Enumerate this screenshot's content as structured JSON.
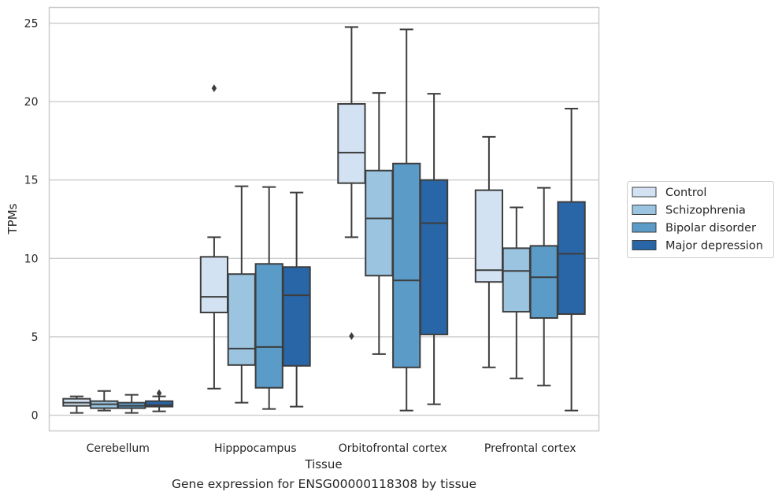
{
  "caption": "Gene expression for ENSG00000118308 by tissue",
  "chart_data": {
    "type": "boxplot",
    "xlabel": "Tissue",
    "ylabel": "TPMs",
    "ylim": [
      -1,
      26
    ],
    "yticks": [
      0,
      5,
      10,
      15,
      20,
      25
    ],
    "grid": "horizontal",
    "legend_position": "right",
    "categories": [
      "Cerebellum",
      "Hipppocampus",
      "Orbitofrontal cortex",
      "Prefrontal cortex"
    ],
    "series": [
      {
        "name": "Control",
        "color": "#d2e2f2",
        "boxes": [
          {
            "whislo": 0.15,
            "q1": 0.6,
            "med": 0.8,
            "q3": 1.05,
            "whishi": 1.2,
            "fliers": []
          },
          {
            "whislo": 1.7,
            "q1": 6.55,
            "med": 7.55,
            "q3": 10.1,
            "whishi": 11.35,
            "fliers": [
              20.85
            ]
          },
          {
            "whislo": 11.35,
            "q1": 14.8,
            "med": 16.75,
            "q3": 19.85,
            "whishi": 24.75,
            "fliers": [
              5.05
            ]
          },
          {
            "whislo": 3.05,
            "q1": 8.5,
            "med": 9.25,
            "q3": 14.35,
            "whishi": 17.75,
            "fliers": []
          }
        ]
      },
      {
        "name": "Schizophrenia",
        "color": "#9ac4df",
        "boxes": [
          {
            "whislo": 0.3,
            "q1": 0.45,
            "med": 0.7,
            "q3": 0.9,
            "whishi": 1.55,
            "fliers": []
          },
          {
            "whislo": 0.8,
            "q1": 3.2,
            "med": 4.25,
            "q3": 9.0,
            "whishi": 14.6,
            "fliers": []
          },
          {
            "whislo": 3.9,
            "q1": 8.9,
            "med": 12.55,
            "q3": 15.6,
            "whishi": 20.55,
            "fliers": []
          },
          {
            "whislo": 2.35,
            "q1": 6.6,
            "med": 9.2,
            "q3": 10.65,
            "whishi": 13.25,
            "fliers": []
          }
        ]
      },
      {
        "name": "Bipolar disorder",
        "color": "#5a9bc8",
        "boxes": [
          {
            "whislo": 0.15,
            "q1": 0.45,
            "med": 0.6,
            "q3": 0.8,
            "whishi": 1.3,
            "fliers": []
          },
          {
            "whislo": 0.4,
            "q1": 1.75,
            "med": 4.35,
            "q3": 9.65,
            "whishi": 14.55,
            "fliers": []
          },
          {
            "whislo": 0.3,
            "q1": 3.05,
            "med": 8.6,
            "q3": 16.05,
            "whishi": 24.6,
            "fliers": []
          },
          {
            "whislo": 1.9,
            "q1": 6.2,
            "med": 8.8,
            "q3": 10.8,
            "whishi": 14.5,
            "fliers": []
          }
        ]
      },
      {
        "name": "Major depression",
        "color": "#2866a8",
        "boxes": [
          {
            "whislo": 0.25,
            "q1": 0.55,
            "med": 0.65,
            "q3": 0.9,
            "whishi": 1.2,
            "fliers": [
              1.4
            ]
          },
          {
            "whislo": 0.55,
            "q1": 3.15,
            "med": 7.65,
            "q3": 9.45,
            "whishi": 14.2,
            "fliers": []
          },
          {
            "whislo": 0.7,
            "q1": 5.15,
            "med": 12.25,
            "q3": 15.0,
            "whishi": 20.5,
            "fliers": []
          },
          {
            "whislo": 0.3,
            "q1": 6.45,
            "med": 10.3,
            "q3": 13.6,
            "whishi": 19.55,
            "fliers": []
          }
        ]
      }
    ]
  }
}
